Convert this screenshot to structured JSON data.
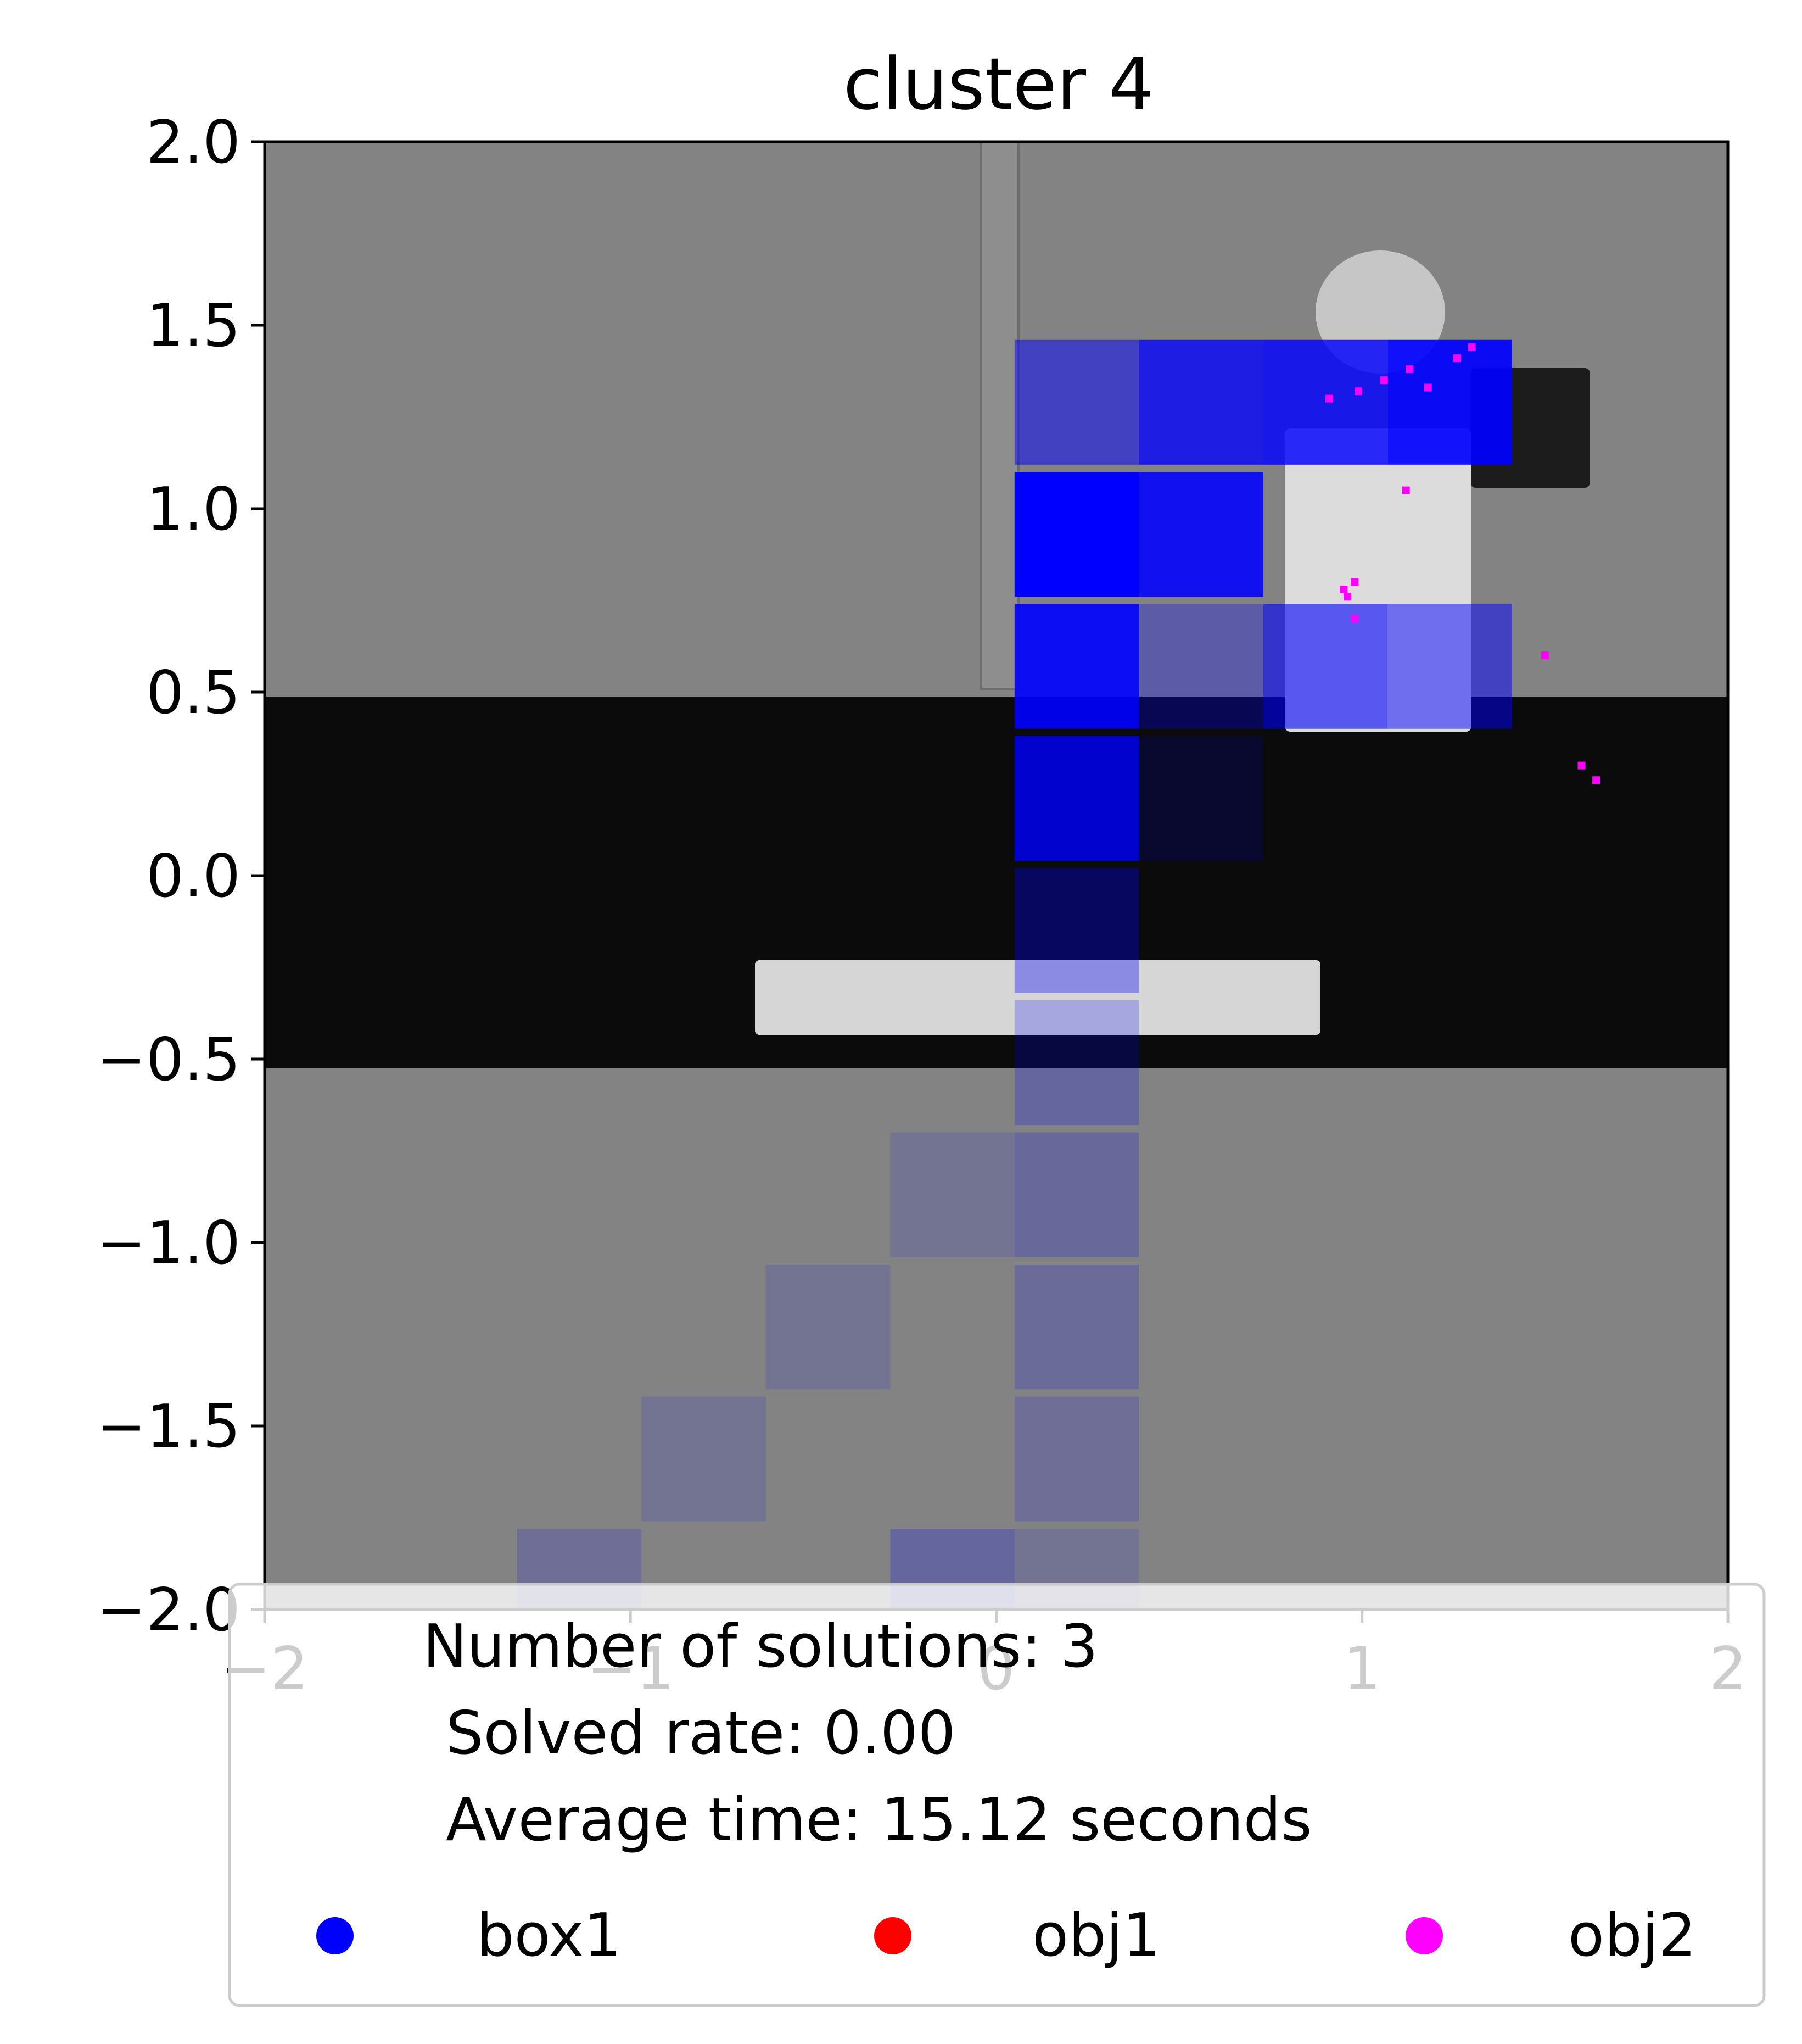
{
  "colors": {
    "floor_gray": "#838383",
    "band_black": "#0b0b0b",
    "heat_blue": "#0000ff",
    "legend_box1": "#0000ff",
    "legend_obj1": "#ff0000",
    "legend_obj2": "#ff00ff"
  },
  "chart_data": {
    "type": "heatmap",
    "title": "cluster 4",
    "xlabel": "",
    "ylabel": "",
    "xlim": [
      -2,
      2
    ],
    "ylim": [
      -2,
      2
    ],
    "xticks": [
      -2,
      -1,
      0,
      1,
      2
    ],
    "xtick_labels": [
      "−2",
      "−1",
      "0",
      "1",
      "2"
    ],
    "yticks": [
      2.0,
      1.5,
      1.0,
      0.5,
      0.0,
      -0.5,
      -1.0,
      -1.5,
      -2.0
    ],
    "ytick_labels": [
      "2.0",
      "1.5",
      "1.0",
      "0.5",
      "0.0",
      "−0.5",
      "−1.0",
      "−1.5",
      "−2.0"
    ],
    "grid": false,
    "legend": {
      "placement": "lower-center",
      "text_lines": [
        "Number of solutions: 3",
        "Solved rate: 0.00",
        "Average time: 15.12 seconds"
      ],
      "entries": [
        {
          "label": "box1",
          "color": "#0000ff"
        },
        {
          "label": "obj1",
          "color": "#ff0000"
        },
        {
          "label": "obj2",
          "color": "#ff00ff"
        }
      ]
    },
    "stats": {
      "number_of_solutions": 3,
      "solved_rate": 0.0,
      "average_time_seconds": 15.12
    },
    "cell_size": 0.34,
    "cells": [
      {
        "x": 0.05,
        "y": 1.12,
        "alpha": 0.5
      },
      {
        "x": 0.39,
        "y": 1.12,
        "alpha": 0.78
      },
      {
        "x": 0.73,
        "y": 1.12,
        "alpha": 0.82
      },
      {
        "x": 1.07,
        "y": 1.12,
        "alpha": 0.92
      },
      {
        "x": 0.05,
        "y": 0.76,
        "alpha": 1.0
      },
      {
        "x": 0.39,
        "y": 0.76,
        "alpha": 0.88
      },
      {
        "x": 0.05,
        "y": 0.4,
        "alpha": 0.9
      },
      {
        "x": 0.39,
        "y": 0.4,
        "alpha": 0.3
      },
      {
        "x": 0.73,
        "y": 0.4,
        "alpha": 0.6
      },
      {
        "x": 1.07,
        "y": 0.4,
        "alpha": 0.5
      },
      {
        "x": 0.05,
        "y": 0.04,
        "alpha": 0.8
      },
      {
        "x": 0.39,
        "y": 0.04,
        "alpha": 0.15
      },
      {
        "x": 0.05,
        "y": -0.32,
        "alpha": 0.35
      },
      {
        "x": 0.05,
        "y": -0.68,
        "alpha": 0.22
      },
      {
        "x": 0.05,
        "y": -1.04,
        "alpha": 0.2
      },
      {
        "x": -0.29,
        "y": -1.04,
        "alpha": 0.12
      },
      {
        "x": 0.05,
        "y": -1.4,
        "alpha": 0.18
      },
      {
        "x": -0.63,
        "y": -1.4,
        "alpha": 0.12
      },
      {
        "x": 0.05,
        "y": -1.76,
        "alpha": 0.16
      },
      {
        "x": -0.97,
        "y": -1.76,
        "alpha": 0.12
      },
      {
        "x": 0.05,
        "y": -2.12,
        "alpha": 0.12
      },
      {
        "x": -0.29,
        "y": -2.12,
        "alpha": 0.22
      },
      {
        "x": -1.31,
        "y": -2.12,
        "alpha": 0.16
      }
    ],
    "obj2_points": [
      {
        "x": 0.91,
        "y": 1.3
      },
      {
        "x": 0.99,
        "y": 1.32
      },
      {
        "x": 1.06,
        "y": 1.35
      },
      {
        "x": 1.13,
        "y": 1.38
      },
      {
        "x": 1.18,
        "y": 1.33
      },
      {
        "x": 1.26,
        "y": 1.41
      },
      {
        "x": 1.3,
        "y": 1.44
      },
      {
        "x": 0.95,
        "y": 0.78
      },
      {
        "x": 0.98,
        "y": 0.8
      },
      {
        "x": 0.96,
        "y": 0.76
      },
      {
        "x": 0.98,
        "y": 0.7
      },
      {
        "x": 1.12,
        "y": 1.05
      },
      {
        "x": 1.5,
        "y": 0.6
      },
      {
        "x": 1.6,
        "y": 0.3
      },
      {
        "x": 1.64,
        "y": 0.26
      }
    ]
  }
}
